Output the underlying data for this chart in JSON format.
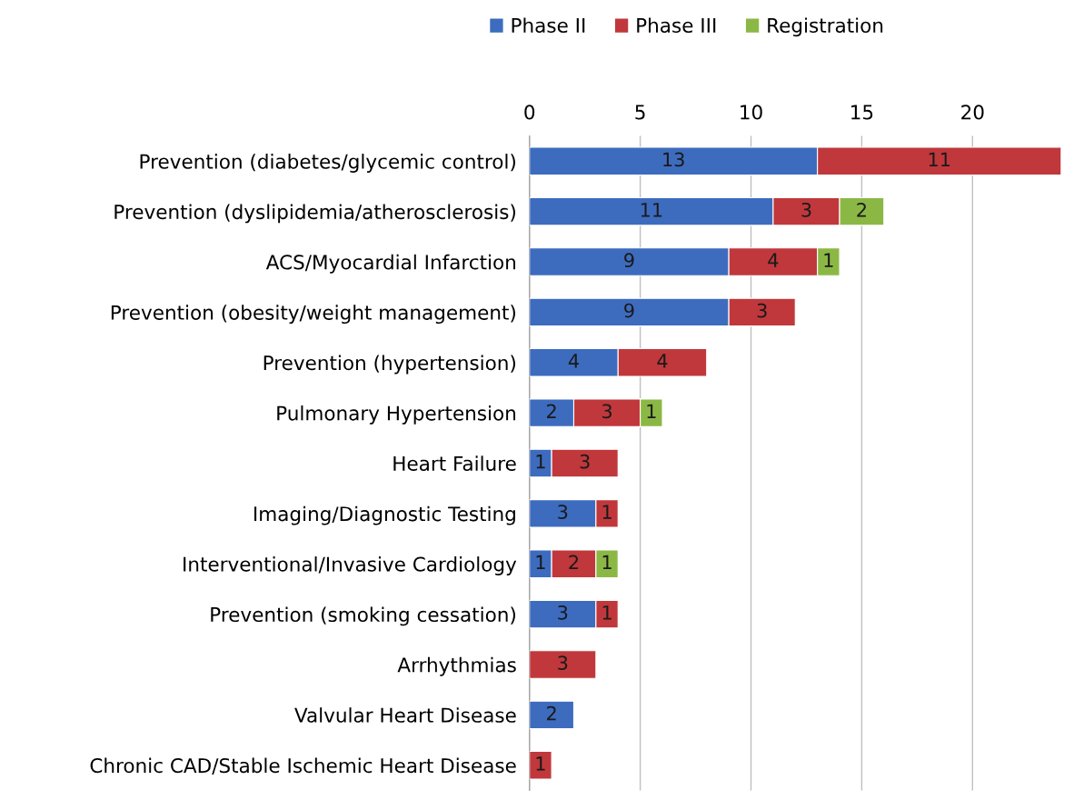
{
  "chart_data": {
    "type": "bar",
    "orientation": "horizontal",
    "stacked": true,
    "categories": [
      "Prevention (diabetes/glycemic control)",
      "Prevention (dyslipidemia/atherosclerosis)",
      "ACS/Myocardial Infarction",
      "Prevention (obesity/weight management)",
      "Prevention (hypertension)",
      "Pulmonary Hypertension",
      "Heart Failure",
      "Imaging/Diagnostic Testing",
      "Interventional/Invasive Cardiology",
      "Prevention (smoking cessation)",
      "Arrhythmias",
      "Valvular Heart Disease",
      "Chronic CAD/Stable Ischemic Heart Disease"
    ],
    "series": [
      {
        "name": "Phase II",
        "color": "#3d6cbf",
        "values": [
          13,
          11,
          9,
          9,
          4,
          2,
          1,
          3,
          1,
          3,
          null,
          2,
          null
        ]
      },
      {
        "name": "Phase III",
        "color": "#c0383c",
        "values": [
          11,
          3,
          4,
          3,
          4,
          3,
          3,
          1,
          2,
          1,
          3,
          null,
          1
        ]
      },
      {
        "name": "Registration",
        "color": "#8bb845",
        "values": [
          null,
          2,
          1,
          null,
          null,
          1,
          null,
          null,
          1,
          null,
          null,
          null,
          null
        ]
      }
    ],
    "xlim": [
      0,
      24
    ],
    "xticks": [
      0,
      5,
      10,
      15,
      20
    ],
    "grid": "x",
    "legend": "top",
    "data_labels": true
  }
}
